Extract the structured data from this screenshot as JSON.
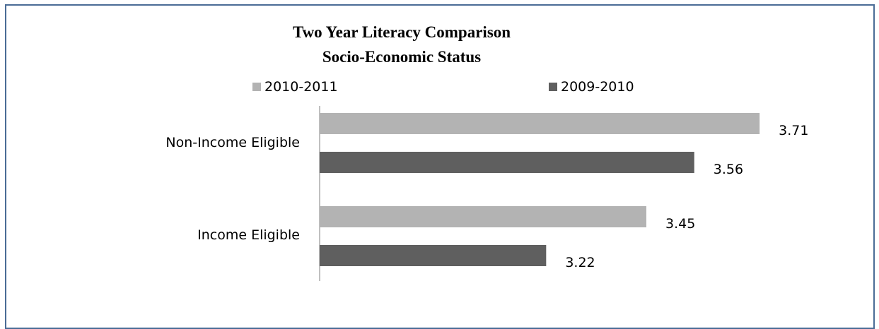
{
  "chart_data": {
    "type": "bar",
    "orientation": "horizontal",
    "title": "Two Year Literacy Comparison",
    "subtitle": "Socio-Economic Status",
    "categories": [
      "Non-Income Eligible",
      "Income Eligible"
    ],
    "series": [
      {
        "name": "2010-2011",
        "values": [
          3.71,
          3.45
        ],
        "color": "#b3b3b3"
      },
      {
        "name": "2009-2010",
        "values": [
          3.56,
          3.22
        ],
        "color": "#5f5f5f"
      }
    ],
    "data_labels": [
      [
        "3.71",
        "3.45"
      ],
      [
        "3.56",
        "3.22"
      ]
    ],
    "xlim": [
      2.7,
      3.8
    ],
    "legend_position": "top",
    "grid": false,
    "axis_color": "#808080",
    "frame_color": "#4a6c96"
  }
}
